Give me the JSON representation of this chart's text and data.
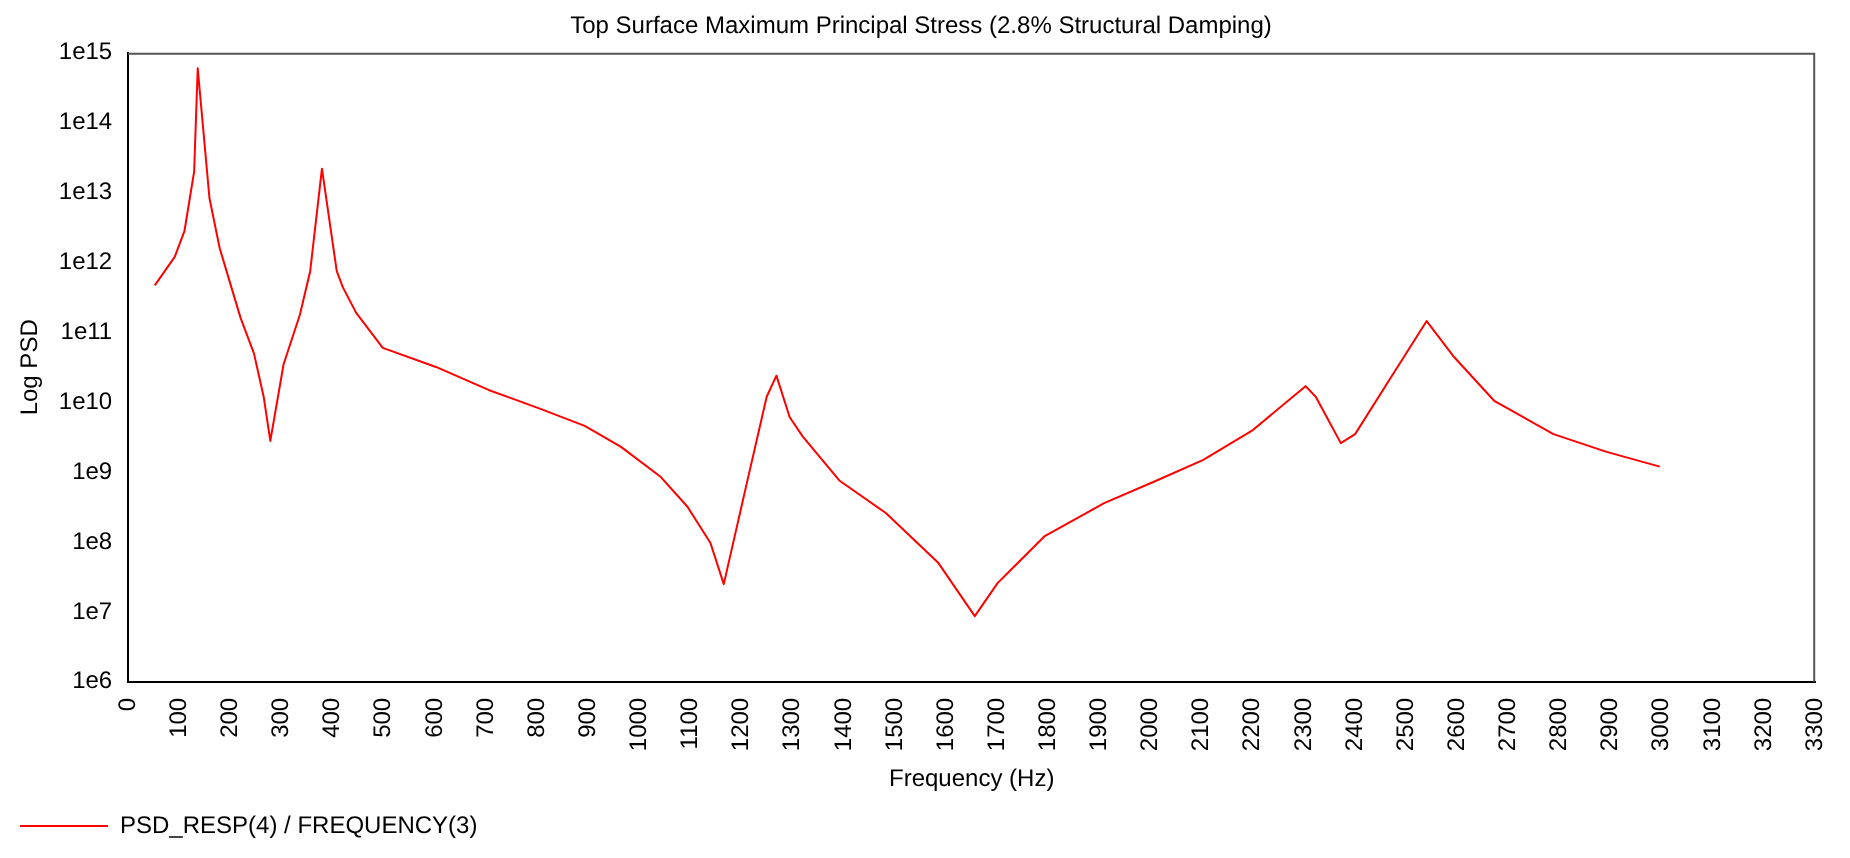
{
  "chart_data": {
    "type": "line",
    "title": "Top Surface Maximum Principal Stress (2.8% Structural Damping)",
    "xlabel": "Frequency (Hz)",
    "ylabel": "Log PSD",
    "log": "y",
    "grid": false,
    "legend": "bottom left",
    "marker": "none",
    "line_style": "solid",
    "xlim": [
      0,
      3300
    ],
    "xticks": [
      0,
      100,
      200,
      300,
      400,
      500,
      600,
      700,
      800,
      900,
      1000,
      1100,
      1200,
      1300,
      1400,
      1500,
      1600,
      1700,
      1800,
      1900,
      2000,
      2100,
      2200,
      2300,
      2400,
      2500,
      2600,
      2700,
      2800,
      2900,
      3000,
      3100,
      3200,
      3300
    ],
    "ylim": [
      1000000.0,
      1000000000000000.0
    ],
    "yticks": [
      {
        "value": 1000000.0,
        "label": "1e6"
      },
      {
        "value": 10000000.0,
        "label": "1e7"
      },
      {
        "value": 100000000.0,
        "label": "1e8"
      },
      {
        "value": 1000000000.0,
        "label": "1e9"
      },
      {
        "value": 10000000000.0,
        "label": "1e10"
      },
      {
        "value": 100000000000.0,
        "label": "1e11"
      },
      {
        "value": 1000000000000.0,
        "label": "1e12"
      },
      {
        "value": 10000000000000.0,
        "label": "1e13"
      },
      {
        "value": 100000000000000.0,
        "label": "1e14"
      },
      {
        "value": 1000000000000000.0,
        "label": "1e15"
      }
    ],
    "x": [
      52,
      91,
      110,
      129,
      136,
      159,
      179,
      200,
      220,
      246,
      265,
      278,
      304,
      336,
      356,
      379,
      408,
      420,
      446,
      498,
      602,
      705,
      809,
      893,
      964,
      1042,
      1094,
      1139,
      1165,
      1210,
      1249,
      1268,
      1294,
      1320,
      1391,
      1482,
      1585,
      1656,
      1701,
      1792,
      1909,
      2012,
      2103,
      2200,
      2303,
      2323,
      2372,
      2400,
      2478,
      2540,
      2594,
      2672,
      2788,
      2892,
      2996
    ],
    "series": [
      {
        "name": "PSD_RESP(4) / FREQUENCY(3)",
        "color": "#ff0000",
        "values": [
          470000000000.0,
          1200000000000.0,
          2800000000000.0,
          20000000000000.0,
          600000000000000.0,
          8300000000000.0,
          1600000000000.0,
          490000000000.0,
          160000000000.0,
          50000000000.0,
          12000000000.0,
          2800000000.0,
          35000000000.0,
          180000000000.0,
          750000000000.0,
          22000000000000.0,
          750000000000.0,
          440000000000.0,
          190000000000.0,
          60000000000.0,
          32000000000.0,
          15000000000.0,
          7900000000.0,
          4600000000.0,
          2300000000.0,
          850000000.0,
          320000000.0,
          97000000.0,
          25000000.0,
          690000000.0,
          12000000000.0,
          24000000000.0,
          6100000000.0,
          3200000000.0,
          760000000.0,
          260000000.0,
          50000000.0,
          8700000.0,
          26000000.0,
          120000000.0,
          360000000.0,
          760000000.0,
          1500000000.0,
          4000000000.0,
          17000000000.0,
          12000000000.0,
          2600000000.0,
          3500000000.0,
          28000000000.0,
          145000000000.0,
          44000000000.0,
          10500000000.0,
          3500000000.0,
          1950000000.0,
          1200000000.0
        ]
      }
    ]
  }
}
